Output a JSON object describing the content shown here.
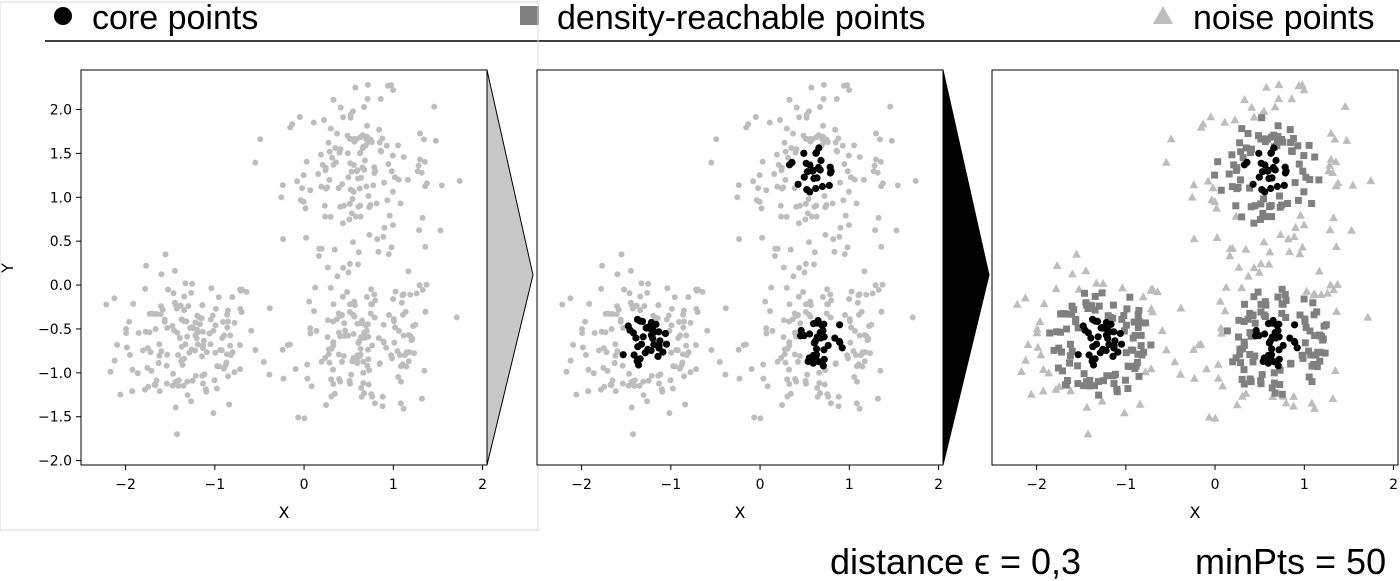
{
  "legend": {
    "core_label": "core points",
    "reachable_label": "density-reachable points",
    "noise_label": "noise points"
  },
  "colors": {
    "core": "#000000",
    "reachable": "#808080",
    "noise": "#bdbdbd",
    "unlabeled": "#bdbdbd"
  },
  "parameters": {
    "distance_label": "distance ϵ = 0,3",
    "minpts_label": "minPts = 50"
  },
  "chart_data": [
    {
      "type": "scatter",
      "panel": "raw",
      "xlabel": "X",
      "ylabel": "Y",
      "xlim": [
        -2.5,
        2.05
      ],
      "ylim": [
        -2.05,
        2.45
      ],
      "xticks": [
        -2,
        -1,
        0,
        1,
        2
      ],
      "yticks": [
        -2.0,
        -1.5,
        -1.0,
        -0.5,
        0.0,
        0.5,
        1.0,
        1.5,
        2.0
      ],
      "clusters": [
        {
          "center": [
            -1.3,
            -0.65
          ],
          "spread": 0.4,
          "count": 170
        },
        {
          "center": [
            0.6,
            1.3
          ],
          "spread": 0.42,
          "count": 160
        },
        {
          "center": [
            0.7,
            -0.65
          ],
          "spread": 0.42,
          "count": 170
        }
      ]
    },
    {
      "type": "scatter",
      "panel": "core",
      "xlabel": "X",
      "xlim": [
        -2.5,
        2.05
      ],
      "ylim": [
        -2.05,
        2.45
      ],
      "xticks": [
        -2,
        -1,
        0,
        1,
        2
      ]
    },
    {
      "type": "scatter",
      "panel": "classified",
      "xlabel": "X",
      "xlim": [
        -2.5,
        2.05
      ],
      "ylim": [
        -2.05,
        2.45
      ],
      "xticks": [
        -2,
        -1,
        0,
        1,
        2
      ]
    }
  ]
}
